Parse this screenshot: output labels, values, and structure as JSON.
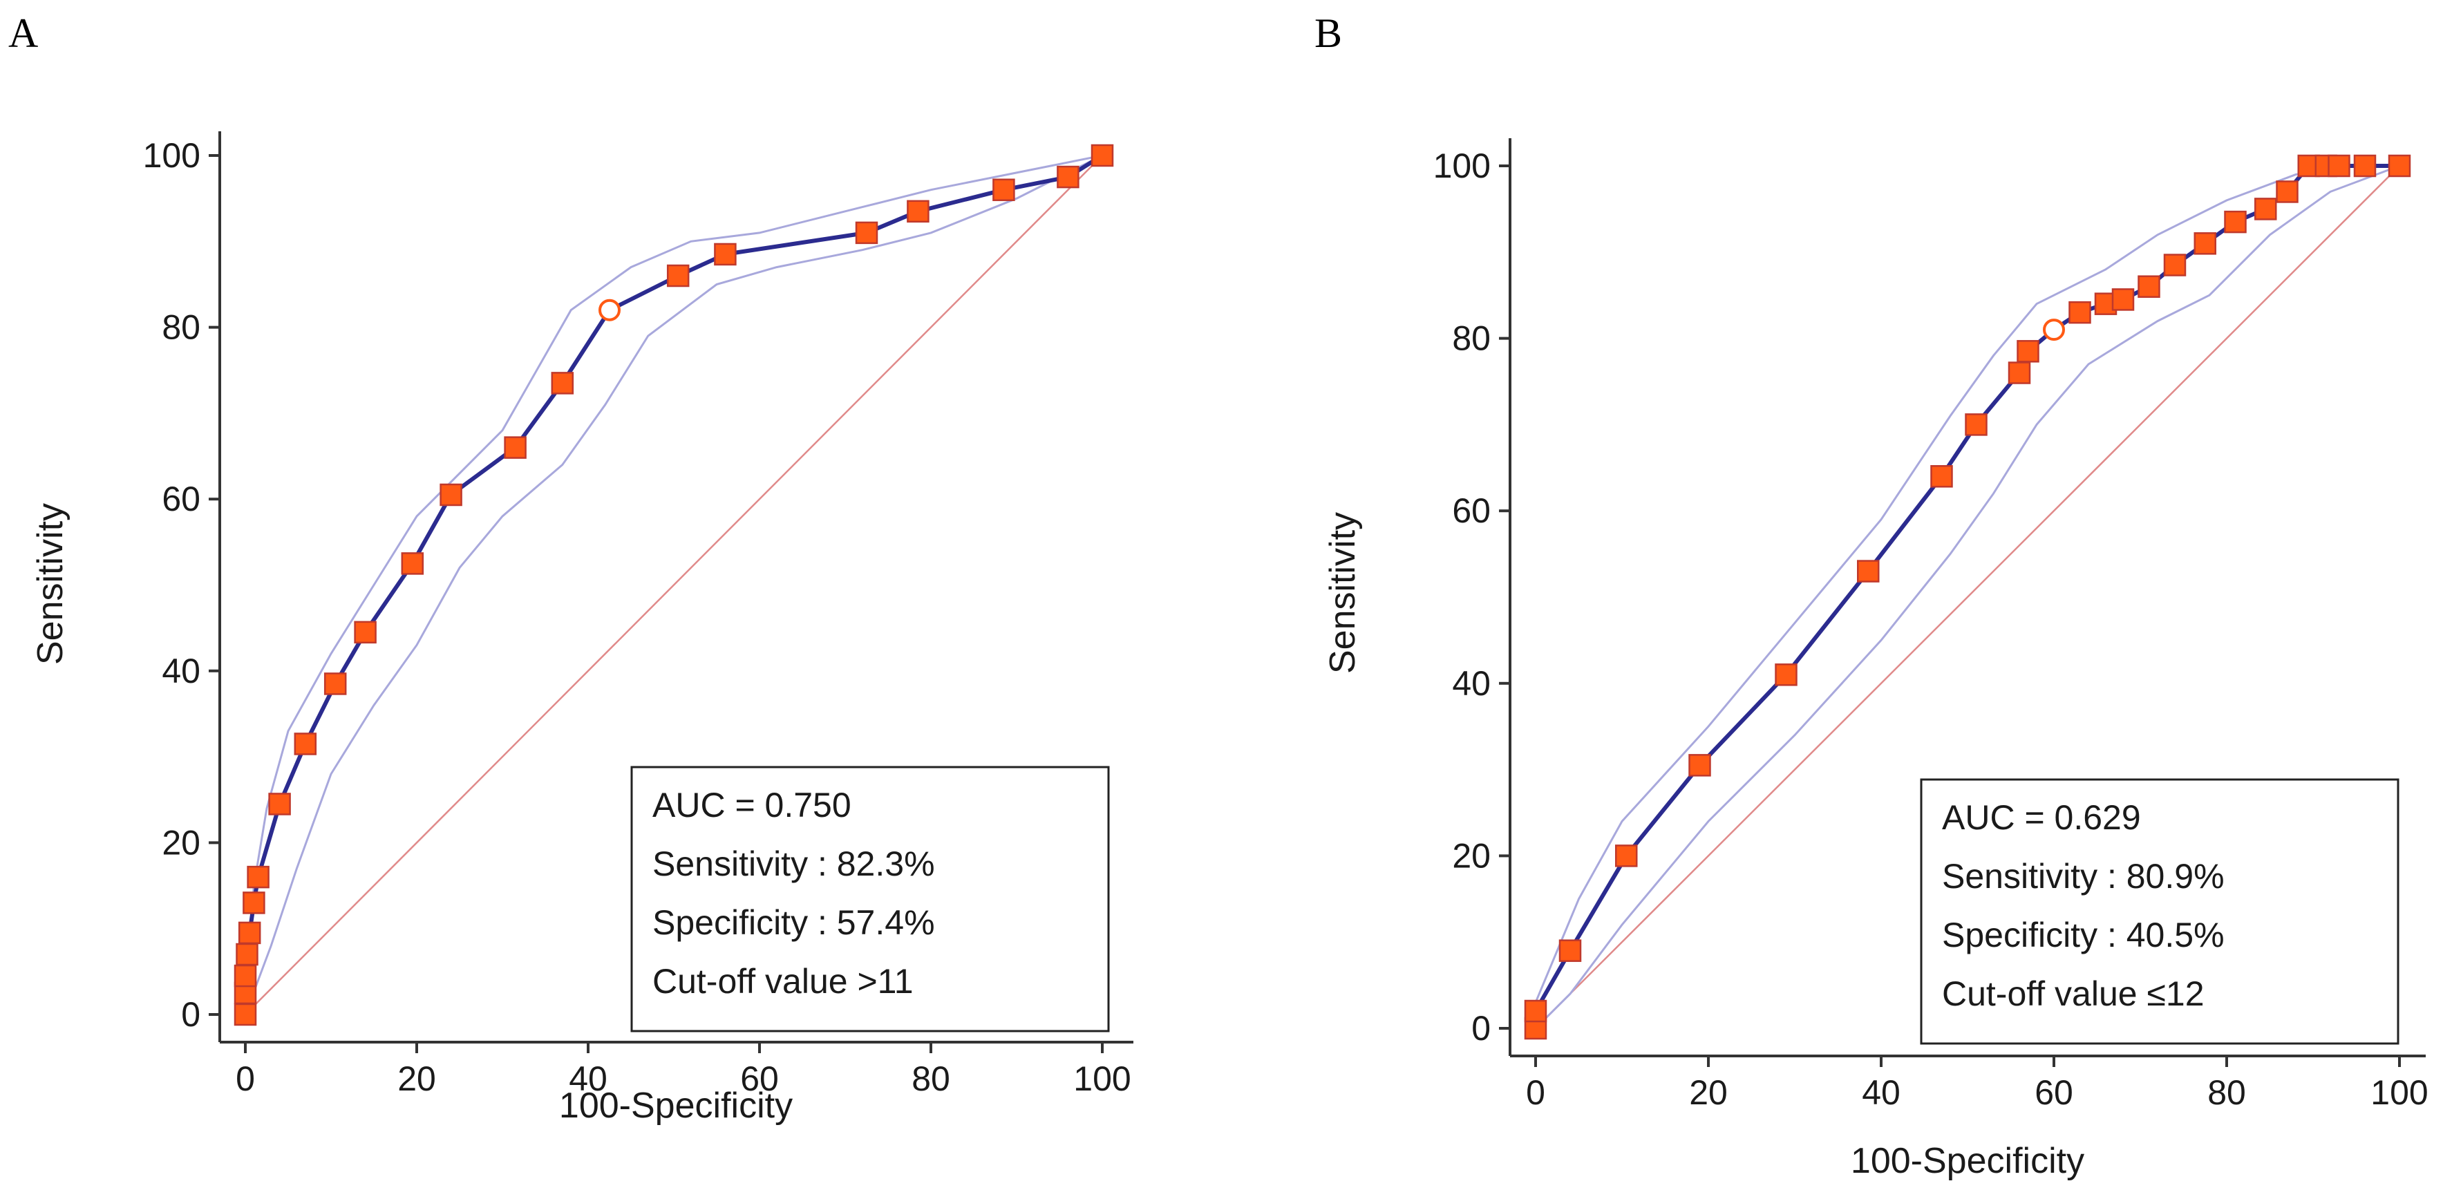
{
  "chart_data": [
    {
      "type": "line",
      "panel": "A",
      "xlabel": "100-Specificity",
      "ylabel": "Sensitivity",
      "xlim": [
        0,
        100
      ],
      "ylim": [
        0,
        100
      ],
      "xticks": [
        0,
        20,
        40,
        60,
        80,
        100
      ],
      "yticks": [
        0,
        20,
        40,
        60,
        80,
        100
      ],
      "grid": false,
      "colors": {
        "roc": "#2b2b8f",
        "ci": "#a8a8dc",
        "marker": "#ff5a14",
        "marker_edge": "#c0392b",
        "reference": "#e08a8a"
      },
      "roc_points": [
        [
          0,
          0
        ],
        [
          0,
          2.5
        ],
        [
          0,
          4.5
        ],
        [
          0.2,
          7
        ],
        [
          0.5,
          9.5
        ],
        [
          1,
          13
        ],
        [
          1.5,
          16
        ],
        [
          4,
          24.5
        ],
        [
          7,
          31.5
        ],
        [
          10.5,
          38.5
        ],
        [
          14,
          44.5
        ],
        [
          19.5,
          52.5
        ],
        [
          24,
          60.5
        ],
        [
          31.5,
          66
        ],
        [
          37,
          73.5
        ],
        [
          42.5,
          82
        ],
        [
          50.5,
          86
        ],
        [
          56,
          88.5
        ],
        [
          72.5,
          91
        ],
        [
          78.5,
          93.5
        ],
        [
          88.5,
          96
        ],
        [
          96,
          97.5
        ],
        [
          100,
          100
        ]
      ],
      "optimal_point": [
        42.5,
        82
      ],
      "ci_upper": [
        [
          0,
          3
        ],
        [
          1,
          15
        ],
        [
          2.5,
          24
        ],
        [
          5,
          33
        ],
        [
          10,
          42
        ],
        [
          15,
          50
        ],
        [
          20,
          58
        ],
        [
          25,
          63
        ],
        [
          30,
          68
        ],
        [
          38,
          82
        ],
        [
          45,
          87
        ],
        [
          52,
          90
        ],
        [
          60,
          91
        ],
        [
          72,
          94
        ],
        [
          80,
          96
        ],
        [
          90,
          98
        ],
        [
          100,
          100
        ]
      ],
      "ci_lower": [
        [
          0,
          0
        ],
        [
          3,
          8
        ],
        [
          6,
          17
        ],
        [
          10,
          28
        ],
        [
          15,
          36
        ],
        [
          20,
          43
        ],
        [
          25,
          52
        ],
        [
          30,
          58
        ],
        [
          37,
          64
        ],
        [
          42,
          71
        ],
        [
          47,
          79
        ],
        [
          55,
          85
        ],
        [
          62,
          87
        ],
        [
          72,
          89
        ],
        [
          80,
          91
        ],
        [
          90,
          95
        ],
        [
          100,
          100
        ]
      ],
      "annotation": {
        "lines": [
          "AUC = 0.750",
          "Sensitivity : 82.3%",
          "Specificity : 57.4%",
          "Cut-off value >11"
        ]
      }
    },
    {
      "type": "line",
      "panel": "B",
      "xlabel": "100-Specificity",
      "ylabel": "Sensitivity",
      "xlim": [
        0,
        100
      ],
      "ylim": [
        0,
        100
      ],
      "xticks": [
        0,
        20,
        40,
        60,
        80,
        100
      ],
      "yticks": [
        0,
        20,
        40,
        60,
        80,
        100
      ],
      "grid": false,
      "colors": {
        "roc": "#2b2b8f",
        "ci": "#a8a8dc",
        "marker": "#ff5a14",
        "marker_edge": "#c0392b",
        "reference": "#e08a8a"
      },
      "roc_points": [
        [
          0,
          0
        ],
        [
          0,
          2
        ],
        [
          4,
          9
        ],
        [
          10.5,
          20
        ],
        [
          19,
          30.5
        ],
        [
          29,
          41
        ],
        [
          38.5,
          53
        ],
        [
          47,
          64
        ],
        [
          51,
          70
        ],
        [
          56,
          76
        ],
        [
          57,
          78.5
        ],
        [
          60,
          81
        ],
        [
          63,
          83
        ],
        [
          66,
          84
        ],
        [
          68,
          84.5
        ],
        [
          71,
          86
        ],
        [
          74,
          88.5
        ],
        [
          77.5,
          91
        ],
        [
          81,
          93.5
        ],
        [
          84.5,
          95
        ],
        [
          87,
          97
        ],
        [
          89.5,
          100
        ],
        [
          91.5,
          100
        ],
        [
          93,
          100
        ],
        [
          96,
          100
        ],
        [
          100,
          100
        ]
      ],
      "optimal_point": [
        60,
        81
      ],
      "ci_upper": [
        [
          0,
          3
        ],
        [
          5,
          15
        ],
        [
          10,
          24
        ],
        [
          20,
          35
        ],
        [
          30,
          47
        ],
        [
          40,
          59
        ],
        [
          48,
          71
        ],
        [
          53,
          78
        ],
        [
          58,
          84
        ],
        [
          66,
          88
        ],
        [
          72,
          92
        ],
        [
          80,
          96
        ],
        [
          88,
          99
        ],
        [
          95,
          100
        ],
        [
          100,
          100
        ]
      ],
      "ci_lower": [
        [
          0,
          0
        ],
        [
          4,
          4
        ],
        [
          10,
          12
        ],
        [
          20,
          24
        ],
        [
          30,
          34
        ],
        [
          40,
          45
        ],
        [
          48,
          55
        ],
        [
          53,
          62
        ],
        [
          58,
          70
        ],
        [
          64,
          77
        ],
        [
          72,
          82
        ],
        [
          78,
          85
        ],
        [
          85,
          92
        ],
        [
          92,
          97
        ],
        [
          100,
          100
        ]
      ],
      "annotation": {
        "lines": [
          "AUC = 0.629",
          "Sensitivity : 80.9%",
          "Specificity : 40.5%",
          "Cut-off value ≤12"
        ]
      }
    }
  ]
}
